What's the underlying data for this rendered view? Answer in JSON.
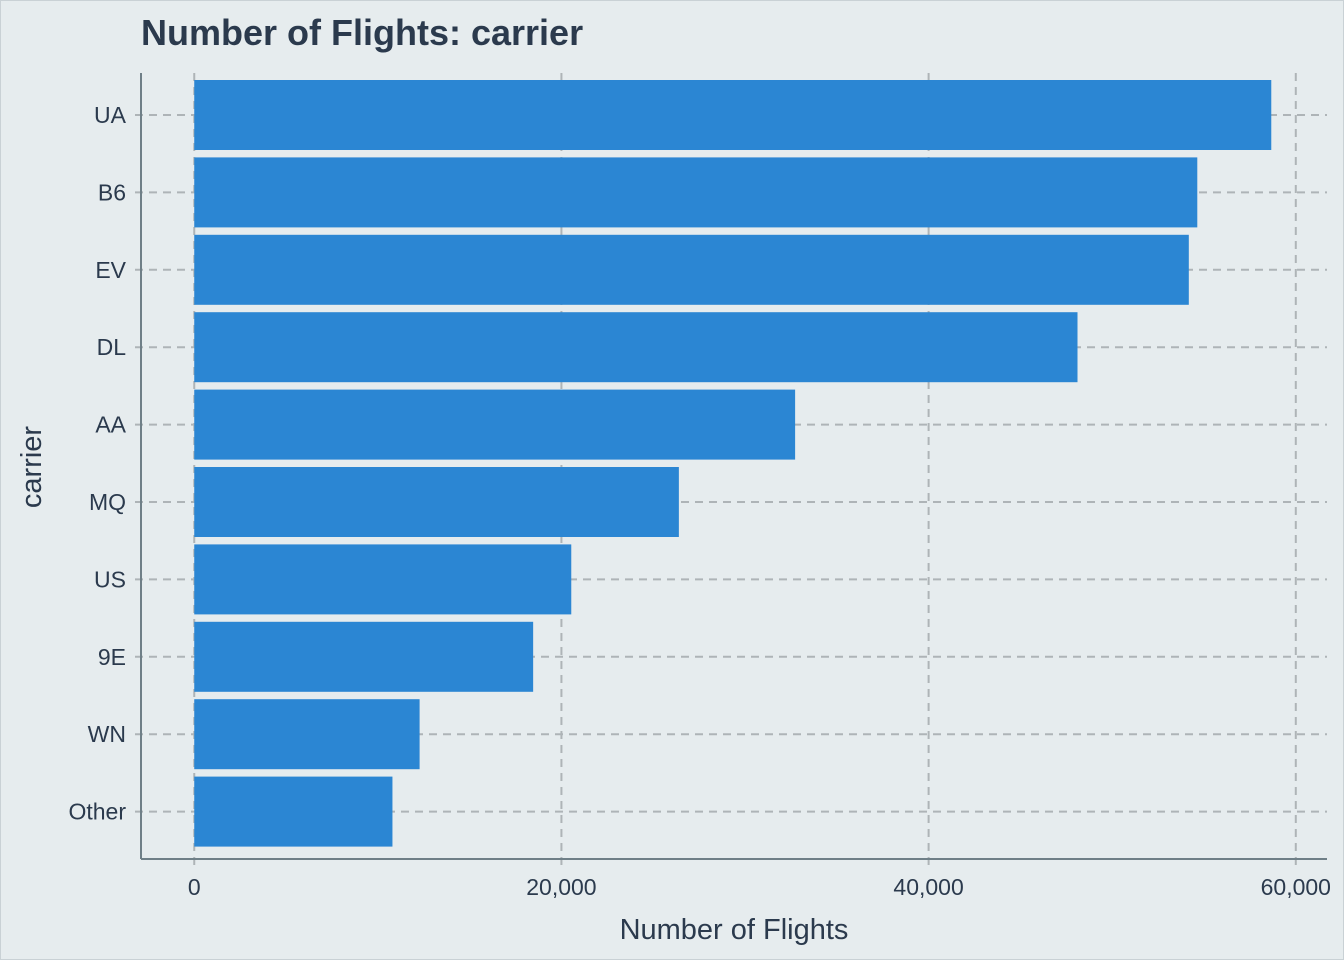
{
  "chart_data": {
    "type": "bar",
    "orientation": "horizontal",
    "title": "Number of Flights: carrier",
    "xlabel": "Number of Flights",
    "ylabel": "carrier",
    "categories": [
      "UA",
      "B6",
      "EV",
      "DL",
      "AA",
      "MQ",
      "US",
      "9E",
      "WN",
      "Other"
    ],
    "values": [
      58665,
      54635,
      54173,
      48110,
      32729,
      26397,
      20536,
      18460,
      12275,
      10796
    ],
    "xlim": [
      -2900,
      61700
    ],
    "x_ticks": [
      0,
      20000,
      40000,
      60000
    ],
    "x_tick_labels": [
      "0",
      "20,000",
      "40,000",
      "60,000"
    ],
    "grid": true,
    "grid_style": "dashed",
    "legend": "none"
  },
  "colors": {
    "background": "#E6ECEE",
    "bar_fill": "#2B86D3",
    "grid": "#AEB4B7",
    "axis_line": "#6F7F87",
    "text": "#2B3A4D"
  }
}
